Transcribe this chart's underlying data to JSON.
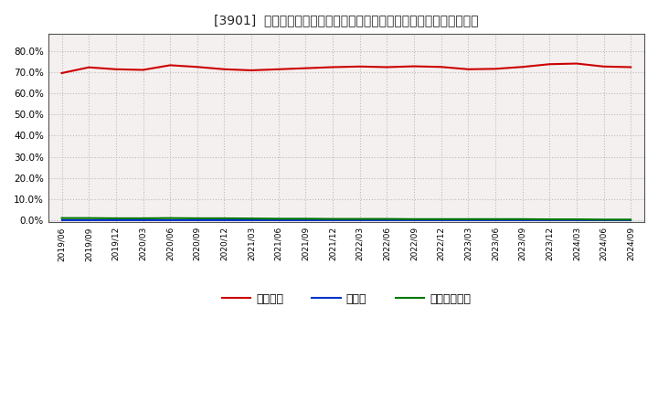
{
  "title": "[3901]  自己資本、のれん、繰延税金資産の総資産に対する比率の推移",
  "x_labels": [
    "2019/06",
    "2019/09",
    "2019/12",
    "2020/03",
    "2020/06",
    "2020/09",
    "2020/12",
    "2021/03",
    "2021/06",
    "2021/09",
    "2021/12",
    "2022/03",
    "2022/06",
    "2022/09",
    "2022/12",
    "2023/03",
    "2023/06",
    "2023/09",
    "2023/12",
    "2024/03",
    "2024/06",
    "2024/09"
  ],
  "jikoshihon": [
    69.5,
    72.2,
    71.3,
    71.0,
    73.2,
    72.4,
    71.3,
    70.8,
    71.3,
    71.8,
    72.3,
    72.6,
    72.3,
    72.7,
    72.4,
    71.3,
    71.5,
    72.4,
    73.7,
    74.0,
    72.6,
    72.3
  ],
  "noren": [
    0.0,
    0.0,
    0.0,
    0.0,
    0.0,
    0.0,
    0.0,
    0.0,
    0.0,
    0.0,
    0.0,
    0.0,
    0.0,
    0.0,
    0.0,
    0.0,
    0.0,
    0.0,
    0.0,
    0.0,
    0.0,
    0.0
  ],
  "kurinobe": [
    1.0,
    1.0,
    0.9,
    0.9,
    1.0,
    0.9,
    0.9,
    0.8,
    0.7,
    0.7,
    0.6,
    0.6,
    0.6,
    0.5,
    0.5,
    0.5,
    0.5,
    0.5,
    0.4,
    0.4,
    0.3,
    0.3
  ],
  "jikoshihon_color": "#cc0000",
  "noren_color": "#0033cc",
  "kurinobe_color": "#007700",
  "background_color": "#ffffff",
  "plot_bg_color": "#f5f0f0",
  "grid_color": "#bbbbbb",
  "yticks": [
    0,
    10,
    20,
    30,
    40,
    50,
    60,
    70,
    80
  ],
  "ylim_min": -1,
  "ylim_max": 88,
  "legend_labels": [
    "自己資本",
    "のれん",
    "繰延税金資産"
  ]
}
